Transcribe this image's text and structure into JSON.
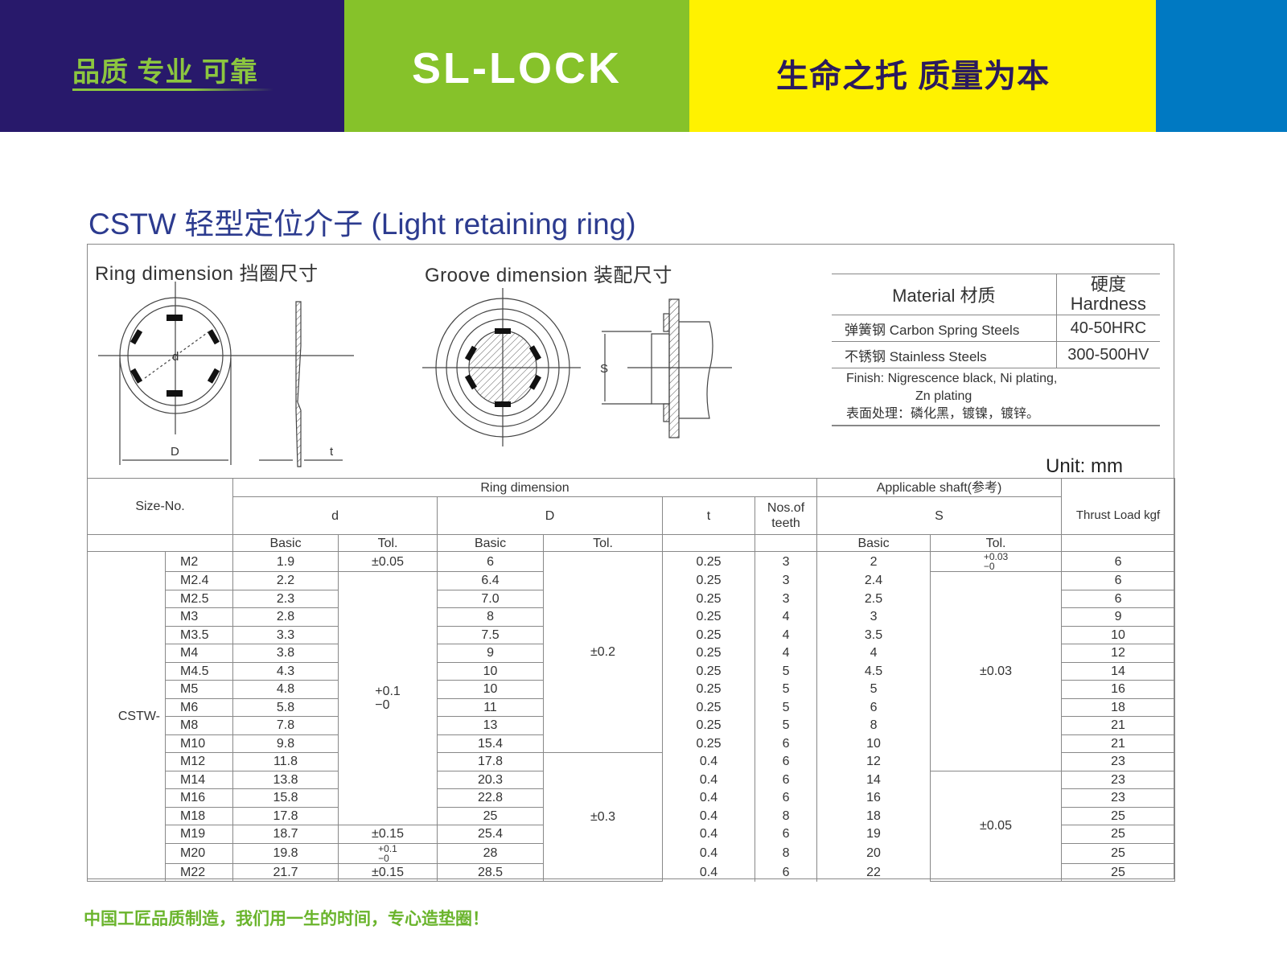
{
  "banner": {
    "slogan_left": "品质 专业 可靠",
    "logo": "SL-LOCK",
    "slogan_right": "生命之托 质量为本",
    "colors": {
      "navy": "#28196b",
      "green": "#86c22a",
      "yellow": "#fff200",
      "blue": "#0079c2"
    }
  },
  "title": "CSTW 轻型定位介子 (Light retaining ring)",
  "diagrams": {
    "ring_label": "Ring dimension 挡圈尺寸",
    "groove_label": "Groove dimension 装配尺寸",
    "d": "d",
    "D": "D",
    "t": "t",
    "S": "S"
  },
  "material": {
    "header_material": "Material   材质",
    "header_hardness_cn": "硬度",
    "header_hardness_en": "Hardness",
    "rows": [
      {
        "name": "弹簧钢 Carbon Spring Steels",
        "hardness": "40-50HRC"
      },
      {
        "name": "不锈钢 Stainless Steels",
        "hardness": "300-500HV"
      }
    ],
    "finish_en_1": "Finish: Nigrescence black, Ni plating,",
    "finish_en_2": "Zn plating",
    "finish_cn": "表面处理：磷化黑，镀镍，镀锌。"
  },
  "unit": "Unit: mm",
  "table": {
    "headers": {
      "size_no": "Size-No.",
      "ring_dimension": "Ring dimension",
      "applicable_shaft": "Applicable shaft(参考)",
      "d": "d",
      "D": "D",
      "t": "t",
      "teeth": "Nos.of teeth",
      "S": "S",
      "thrust": "Thrust Load kgf",
      "basic": "Basic",
      "tol": "Tol."
    },
    "series": "CSTW-",
    "rows": [
      {
        "size": "M2",
        "d": "1.9",
        "D": "6",
        "t": "0.25",
        "teeth": "3",
        "S": "2",
        "thrust": "6"
      },
      {
        "size": "M2.4",
        "d": "2.2",
        "D": "6.4",
        "t": "0.25",
        "teeth": "3",
        "S": "2.4",
        "thrust": "6"
      },
      {
        "size": "M2.5",
        "d": "2.3",
        "D": "7.0",
        "t": "0.25",
        "teeth": "3",
        "S": "2.5",
        "thrust": "6"
      },
      {
        "size": "M3",
        "d": "2.8",
        "D": "8",
        "t": "0.25",
        "teeth": "4",
        "S": "3",
        "thrust": "9"
      },
      {
        "size": "M3.5",
        "d": "3.3",
        "D": "7.5",
        "t": "0.25",
        "teeth": "4",
        "S": "3.5",
        "thrust": "10"
      },
      {
        "size": "M4",
        "d": "3.8",
        "D": "9",
        "t": "0.25",
        "teeth": "4",
        "S": "4",
        "thrust": "12"
      },
      {
        "size": "M4.5",
        "d": "4.3",
        "D": "10",
        "t": "0.25",
        "teeth": "5",
        "S": "4.5",
        "thrust": "14"
      },
      {
        "size": "M5",
        "d": "4.8",
        "D": "10",
        "t": "0.25",
        "teeth": "5",
        "S": "5",
        "thrust": "16"
      },
      {
        "size": "M6",
        "d": "5.8",
        "D": "11",
        "t": "0.25",
        "teeth": "5",
        "S": "6",
        "thrust": "18"
      },
      {
        "size": "M8",
        "d": "7.8",
        "D": "13",
        "t": "0.25",
        "teeth": "5",
        "S": "8",
        "thrust": "21"
      },
      {
        "size": "M10",
        "d": "9.8",
        "D": "15.4",
        "t": "0.25",
        "teeth": "6",
        "S": "10",
        "thrust": "21"
      },
      {
        "size": "M12",
        "d": "11.8",
        "D": "17.8",
        "t": "0.4",
        "teeth": "6",
        "S": "12",
        "thrust": "23"
      },
      {
        "size": "M14",
        "d": "13.8",
        "D": "20.3",
        "t": "0.4",
        "teeth": "6",
        "S": "14",
        "thrust": "23"
      },
      {
        "size": "M16",
        "d": "15.8",
        "D": "22.8",
        "t": "0.4",
        "teeth": "6",
        "S": "16",
        "thrust": "23"
      },
      {
        "size": "M18",
        "d": "17.8",
        "D": "25",
        "t": "0.4",
        "teeth": "8",
        "S": "18",
        "thrust": "25"
      },
      {
        "size": "M19",
        "d": "18.7",
        "D": "25.4",
        "t": "0.4",
        "teeth": "6",
        "S": "19",
        "thrust": "25"
      },
      {
        "size": "M20",
        "d": "19.8",
        "D": "28",
        "t": "0.4",
        "teeth": "8",
        "S": "20",
        "thrust": "25"
      },
      {
        "size": "M22",
        "d": "21.7",
        "D": "28.5",
        "t": "0.4",
        "teeth": "6",
        "S": "22",
        "thrust": "25"
      }
    ],
    "d_tol": [
      {
        "value": "±0.05",
        "span": 1
      },
      {
        "upper": "+0.1",
        "lower": "−0",
        "span": 14
      },
      {
        "value": "±0.15",
        "span": 1
      },
      {
        "upper": "+0.1",
        "lower": "−0",
        "span": 1,
        "small": true
      },
      {
        "value": "±0.15",
        "span": 1
      }
    ],
    "D_tol": [
      {
        "value": "±0.2",
        "span": 11
      },
      {
        "value": "±0.3",
        "span": 7
      }
    ],
    "S_tol": [
      {
        "upper": "+0.03",
        "lower": "−0",
        "span": 1,
        "small": true
      },
      {
        "value": "±0.03",
        "span": 11
      },
      {
        "value": "±0.05",
        "span": 6
      }
    ]
  },
  "footer": "中国工匠品质制造，我们用一生的时间，专心造垫圈！"
}
